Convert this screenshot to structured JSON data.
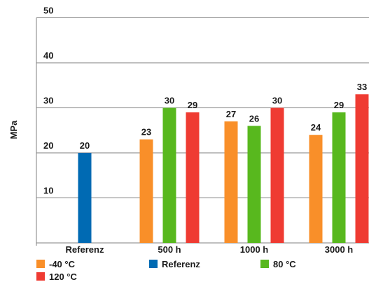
{
  "chart_data": {
    "type": "bar",
    "ylabel": "MPa",
    "xlabel": "",
    "ylim": [
      0,
      50
    ],
    "yticks": [
      10,
      20,
      30,
      40,
      50
    ],
    "grid": true,
    "categories": [
      "Referenz",
      "500 h",
      "1000 h",
      "3000 h"
    ],
    "series": [
      {
        "name": "-40 °C",
        "color": "#f98f29",
        "values": [
          null,
          23,
          27,
          24
        ]
      },
      {
        "name": "Referenz",
        "color": "#006ab3",
        "values": [
          20,
          null,
          null,
          null
        ]
      },
      {
        "name": "80 °C",
        "color": "#58b81e",
        "values": [
          null,
          30,
          26,
          29
        ]
      },
      {
        "name": "120 °C",
        "color": "#ef3b32",
        "values": [
          null,
          29,
          30,
          33
        ]
      }
    ],
    "legend_position": "bottom"
  }
}
